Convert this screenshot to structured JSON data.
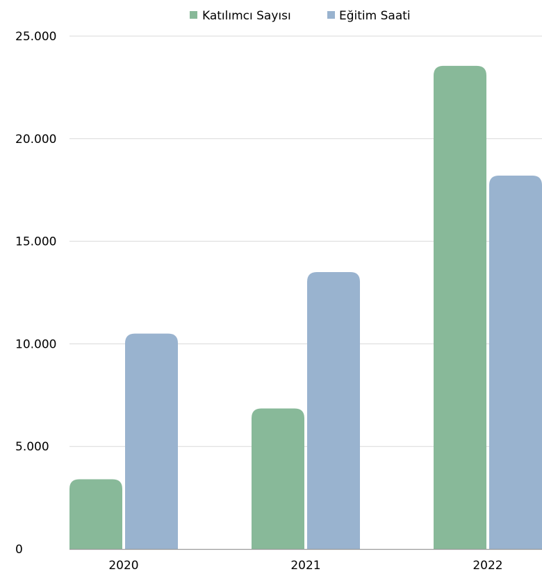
{
  "chart_data": {
    "type": "bar",
    "title": "",
    "xlabel": "",
    "ylabel": "",
    "categories": [
      "2020",
      "2021",
      "2022"
    ],
    "series": [
      {
        "name": "Katılımcı Sayısı",
        "color": "#88b999",
        "values": [
          3400,
          6850,
          23550
        ]
      },
      {
        "name": "Eğitim Saati",
        "color": "#99b3cf",
        "values": [
          10500,
          13500,
          18200
        ]
      }
    ],
    "ylim": [
      0,
      25000
    ],
    "y_ticks": [
      0,
      5000,
      10000,
      15000,
      20000,
      25000
    ],
    "y_tick_labels": [
      "0",
      "5.000",
      "10.000",
      "15.000",
      "20.000",
      "25.000"
    ],
    "grid": true,
    "legend_position": "top-center"
  }
}
